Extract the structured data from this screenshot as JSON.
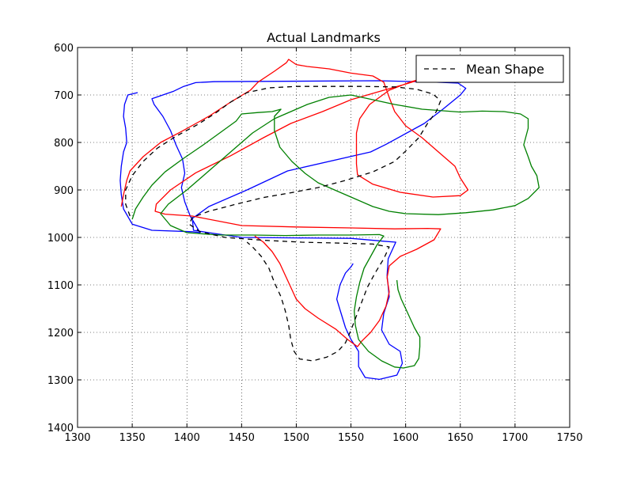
{
  "chart_data": {
    "type": "line",
    "title": "Actual Landmarks",
    "xlabel": "",
    "ylabel": "",
    "xlim": [
      1300,
      1750
    ],
    "ylim": [
      1400,
      600
    ],
    "y_inverted": true,
    "xticks": [
      1300,
      1350,
      1400,
      1450,
      1500,
      1550,
      1600,
      1650,
      1700,
      1750
    ],
    "yticks": [
      600,
      700,
      800,
      900,
      1000,
      1100,
      1200,
      1300,
      1400
    ],
    "grid": true,
    "legend": {
      "placement": "top-right",
      "entries": [
        {
          "label": "Mean Shape",
          "style": "dashed",
          "color": "#000000"
        }
      ]
    },
    "series": [
      {
        "color": "#0000ff",
        "style": "solid",
        "points": [
          [
            1355,
            695
          ],
          [
            1346,
            700
          ],
          [
            1343,
            720
          ],
          [
            1342,
            745
          ],
          [
            1344,
            770
          ],
          [
            1345,
            800
          ],
          [
            1342,
            820
          ],
          [
            1340,
            850
          ],
          [
            1339,
            880
          ],
          [
            1340,
            910
          ],
          [
            1342,
            940
          ],
          [
            1350,
            972
          ],
          [
            1368,
            985
          ],
          [
            1405,
            988
          ],
          [
            1412,
            990
          ],
          [
            1403,
            955
          ],
          [
            1398,
            925
          ],
          [
            1395,
            895
          ],
          [
            1398,
            865
          ],
          [
            1396,
            835
          ],
          [
            1390,
            805
          ],
          [
            1385,
            775
          ],
          [
            1378,
            745
          ],
          [
            1370,
            720
          ],
          [
            1368,
            708
          ],
          [
            1378,
            700
          ],
          [
            1388,
            692
          ],
          [
            1397,
            682
          ],
          [
            1408,
            674
          ],
          [
            1425,
            672
          ],
          [
            1575,
            670
          ],
          [
            1628,
            673
          ],
          [
            1648,
            675
          ],
          [
            1655,
            686
          ],
          [
            1650,
            700
          ],
          [
            1634,
            730
          ],
          [
            1617,
            760
          ],
          [
            1582,
            804
          ],
          [
            1568,
            820
          ],
          [
            1492,
            860
          ],
          [
            1455,
            900
          ],
          [
            1420,
            935
          ],
          [
            1405,
            960
          ],
          [
            1406,
            985
          ],
          [
            1420,
            990
          ],
          [
            1450,
            1000
          ],
          [
            1500,
            1001
          ],
          [
            1550,
            1002
          ],
          [
            1580,
            1008
          ],
          [
            1591,
            1010
          ],
          [
            1584,
            1045
          ],
          [
            1583,
            1080
          ],
          [
            1585,
            1125
          ],
          [
            1580,
            1160
          ],
          [
            1578,
            1195
          ],
          [
            1585,
            1225
          ],
          [
            1595,
            1240
          ],
          [
            1597,
            1265
          ],
          [
            1592,
            1290
          ],
          [
            1576,
            1299
          ],
          [
            1563,
            1295
          ],
          [
            1557,
            1272
          ],
          [
            1557,
            1240
          ],
          [
            1550,
            1215
          ],
          [
            1545,
            1190
          ],
          [
            1541,
            1160
          ],
          [
            1537,
            1130
          ],
          [
            1540,
            1100
          ],
          [
            1545,
            1075
          ],
          [
            1550,
            1062
          ],
          [
            1552,
            1055
          ]
        ]
      },
      {
        "color": "#ff0000",
        "style": "solid",
        "points": [
          [
            1340,
            935
          ],
          [
            1342,
            910
          ],
          [
            1345,
            880
          ],
          [
            1348,
            860
          ],
          [
            1360,
            830
          ],
          [
            1376,
            800
          ],
          [
            1395,
            777
          ],
          [
            1420,
            745
          ],
          [
            1440,
            715
          ],
          [
            1458,
            690
          ],
          [
            1465,
            673
          ],
          [
            1480,
            650
          ],
          [
            1491,
            632
          ],
          [
            1493,
            625
          ],
          [
            1500,
            636
          ],
          [
            1510,
            640
          ],
          [
            1530,
            645
          ],
          [
            1550,
            654
          ],
          [
            1570,
            660
          ],
          [
            1580,
            673
          ],
          [
            1585,
            705
          ],
          [
            1590,
            735
          ],
          [
            1600,
            765
          ],
          [
            1615,
            790
          ],
          [
            1630,
            820
          ],
          [
            1645,
            850
          ],
          [
            1650,
            875
          ],
          [
            1657,
            900
          ],
          [
            1650,
            912
          ],
          [
            1625,
            915
          ],
          [
            1595,
            905
          ],
          [
            1570,
            888
          ],
          [
            1556,
            868
          ],
          [
            1555,
            845
          ],
          [
            1555,
            810
          ],
          [
            1555,
            780
          ],
          [
            1558,
            750
          ],
          [
            1567,
            720
          ],
          [
            1585,
            690
          ],
          [
            1605,
            672
          ],
          [
            1624,
            660
          ],
          [
            1600,
            677
          ],
          [
            1580,
            690
          ],
          [
            1550,
            710
          ],
          [
            1524,
            735
          ],
          [
            1495,
            760
          ],
          [
            1470,
            790
          ],
          [
            1440,
            828
          ],
          [
            1408,
            864
          ],
          [
            1385,
            900
          ],
          [
            1372,
            930
          ],
          [
            1371,
            945
          ],
          [
            1380,
            951
          ],
          [
            1405,
            955
          ],
          [
            1450,
            975
          ],
          [
            1500,
            978
          ],
          [
            1550,
            980
          ],
          [
            1590,
            982
          ],
          [
            1620,
            981
          ],
          [
            1632,
            982
          ],
          [
            1626,
            1005
          ],
          [
            1610,
            1025
          ],
          [
            1595,
            1040
          ],
          [
            1585,
            1060
          ],
          [
            1583,
            1085
          ],
          [
            1585,
            1115
          ],
          [
            1582,
            1145
          ],
          [
            1576,
            1175
          ],
          [
            1568,
            1200
          ],
          [
            1560,
            1218
          ],
          [
            1556,
            1230
          ],
          [
            1547,
            1215
          ],
          [
            1536,
            1193
          ],
          [
            1520,
            1170
          ],
          [
            1508,
            1150
          ],
          [
            1500,
            1130
          ],
          [
            1495,
            1105
          ],
          [
            1490,
            1080
          ],
          [
            1485,
            1055
          ],
          [
            1478,
            1030
          ],
          [
            1470,
            1010
          ],
          [
            1462,
            997
          ]
        ]
      },
      {
        "color": "#008000",
        "style": "solid",
        "points": [
          [
            1350,
            962
          ],
          [
            1353,
            940
          ],
          [
            1360,
            915
          ],
          [
            1368,
            890
          ],
          [
            1380,
            862
          ],
          [
            1396,
            835
          ],
          [
            1415,
            805
          ],
          [
            1430,
            780
          ],
          [
            1445,
            755
          ],
          [
            1450,
            740
          ],
          [
            1465,
            737
          ],
          [
            1478,
            735
          ],
          [
            1486,
            730
          ],
          [
            1480,
            745
          ],
          [
            1480,
            775
          ],
          [
            1485,
            810
          ],
          [
            1496,
            840
          ],
          [
            1508,
            865
          ],
          [
            1520,
            885
          ],
          [
            1540,
            905
          ],
          [
            1555,
            920
          ],
          [
            1570,
            935
          ],
          [
            1585,
            945
          ],
          [
            1600,
            950
          ],
          [
            1630,
            952
          ],
          [
            1655,
            948
          ],
          [
            1680,
            942
          ],
          [
            1700,
            933
          ],
          [
            1712,
            918
          ],
          [
            1722,
            895
          ],
          [
            1720,
            870
          ],
          [
            1715,
            850
          ],
          [
            1712,
            830
          ],
          [
            1708,
            805
          ],
          [
            1712,
            770
          ],
          [
            1712,
            750
          ],
          [
            1705,
            740
          ],
          [
            1690,
            735
          ],
          [
            1670,
            734
          ],
          [
            1650,
            736
          ],
          [
            1615,
            730
          ],
          [
            1590,
            720
          ],
          [
            1570,
            710
          ],
          [
            1550,
            700
          ],
          [
            1530,
            705
          ],
          [
            1510,
            720
          ],
          [
            1480,
            750
          ],
          [
            1460,
            780
          ],
          [
            1440,
            820
          ],
          [
            1420,
            860
          ],
          [
            1400,
            900
          ],
          [
            1383,
            930
          ],
          [
            1376,
            950
          ],
          [
            1385,
            975
          ],
          [
            1400,
            990
          ],
          [
            1430,
            995
          ],
          [
            1460,
            995
          ],
          [
            1490,
            996
          ],
          [
            1520,
            995
          ],
          [
            1550,
            995
          ],
          [
            1576,
            994
          ],
          [
            1580,
            997
          ],
          [
            1574,
            1015
          ],
          [
            1568,
            1040
          ],
          [
            1562,
            1065
          ],
          [
            1558,
            1095
          ],
          [
            1555,
            1125
          ],
          [
            1553,
            1155
          ],
          [
            1554,
            1185
          ],
          [
            1557,
            1215
          ],
          [
            1566,
            1240
          ],
          [
            1578,
            1260
          ],
          [
            1590,
            1273
          ],
          [
            1598,
            1275
          ],
          [
            1608,
            1270
          ],
          [
            1612,
            1255
          ],
          [
            1613,
            1230
          ],
          [
            1613,
            1210
          ],
          [
            1608,
            1190
          ],
          [
            1604,
            1170
          ],
          [
            1600,
            1150
          ],
          [
            1596,
            1130
          ],
          [
            1593,
            1110
          ],
          [
            1592,
            1090
          ]
        ]
      },
      {
        "color": "#000000",
        "style": "dashed",
        "points": [
          [
            1348,
            955
          ],
          [
            1344,
            930
          ],
          [
            1344,
            900
          ],
          [
            1350,
            870
          ],
          [
            1360,
            840
          ],
          [
            1373,
            812
          ],
          [
            1390,
            787
          ],
          [
            1410,
            762
          ],
          [
            1425,
            740
          ],
          [
            1440,
            715
          ],
          [
            1455,
            695
          ],
          [
            1475,
            685
          ],
          [
            1500,
            682
          ],
          [
            1530,
            682
          ],
          [
            1560,
            682
          ],
          [
            1590,
            683
          ],
          [
            1610,
            688
          ],
          [
            1625,
            698
          ],
          [
            1632,
            712
          ],
          [
            1628,
            735
          ],
          [
            1620,
            760
          ],
          [
            1612,
            790
          ],
          [
            1600,
            818
          ],
          [
            1590,
            840
          ],
          [
            1570,
            862
          ],
          [
            1545,
            880
          ],
          [
            1520,
            895
          ],
          [
            1495,
            906
          ],
          [
            1470,
            916
          ],
          [
            1445,
            930
          ],
          [
            1420,
            945
          ],
          [
            1405,
            958
          ],
          [
            1402,
            972
          ],
          [
            1412,
            988
          ],
          [
            1435,
            1000
          ],
          [
            1470,
            1006
          ],
          [
            1505,
            1010
          ],
          [
            1540,
            1012
          ],
          [
            1570,
            1014
          ],
          [
            1585,
            1020
          ],
          [
            1580,
            1045
          ],
          [
            1572,
            1075
          ],
          [
            1565,
            1105
          ],
          [
            1560,
            1135
          ],
          [
            1555,
            1165
          ],
          [
            1550,
            1195
          ],
          [
            1545,
            1222
          ],
          [
            1538,
            1240
          ],
          [
            1528,
            1252
          ],
          [
            1515,
            1260
          ],
          [
            1503,
            1256
          ],
          [
            1498,
            1240
          ],
          [
            1495,
            1215
          ],
          [
            1493,
            1185
          ],
          [
            1490,
            1155
          ],
          [
            1486,
            1125
          ],
          [
            1480,
            1095
          ],
          [
            1475,
            1065
          ],
          [
            1468,
            1040
          ],
          [
            1460,
            1020
          ],
          [
            1455,
            1010
          ]
        ]
      }
    ]
  }
}
